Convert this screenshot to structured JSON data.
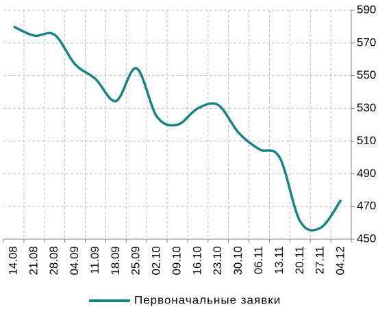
{
  "chart_data": {
    "type": "line",
    "categories": [
      "14.08",
      "21.08",
      "28.08",
      "04.09",
      "11.09",
      "18.09",
      "25.09",
      "02.10",
      "09.10",
      "16.10",
      "23.10",
      "30.10",
      "06.11",
      "13.11",
      "20.11",
      "27.11",
      "04.12"
    ],
    "series": [
      {
        "name": "Первоначальные заявки",
        "color": "#138585",
        "values": [
          580,
          574.5,
          575,
          557,
          548,
          534.5,
          554.5,
          525,
          520,
          530,
          532,
          515,
          505,
          500,
          461,
          457,
          474
        ]
      }
    ],
    "ylim": [
      450,
      590
    ],
    "yticks": [
      450,
      470,
      490,
      510,
      530,
      550,
      570,
      590
    ],
    "grid": true,
    "legend": "bottom"
  }
}
